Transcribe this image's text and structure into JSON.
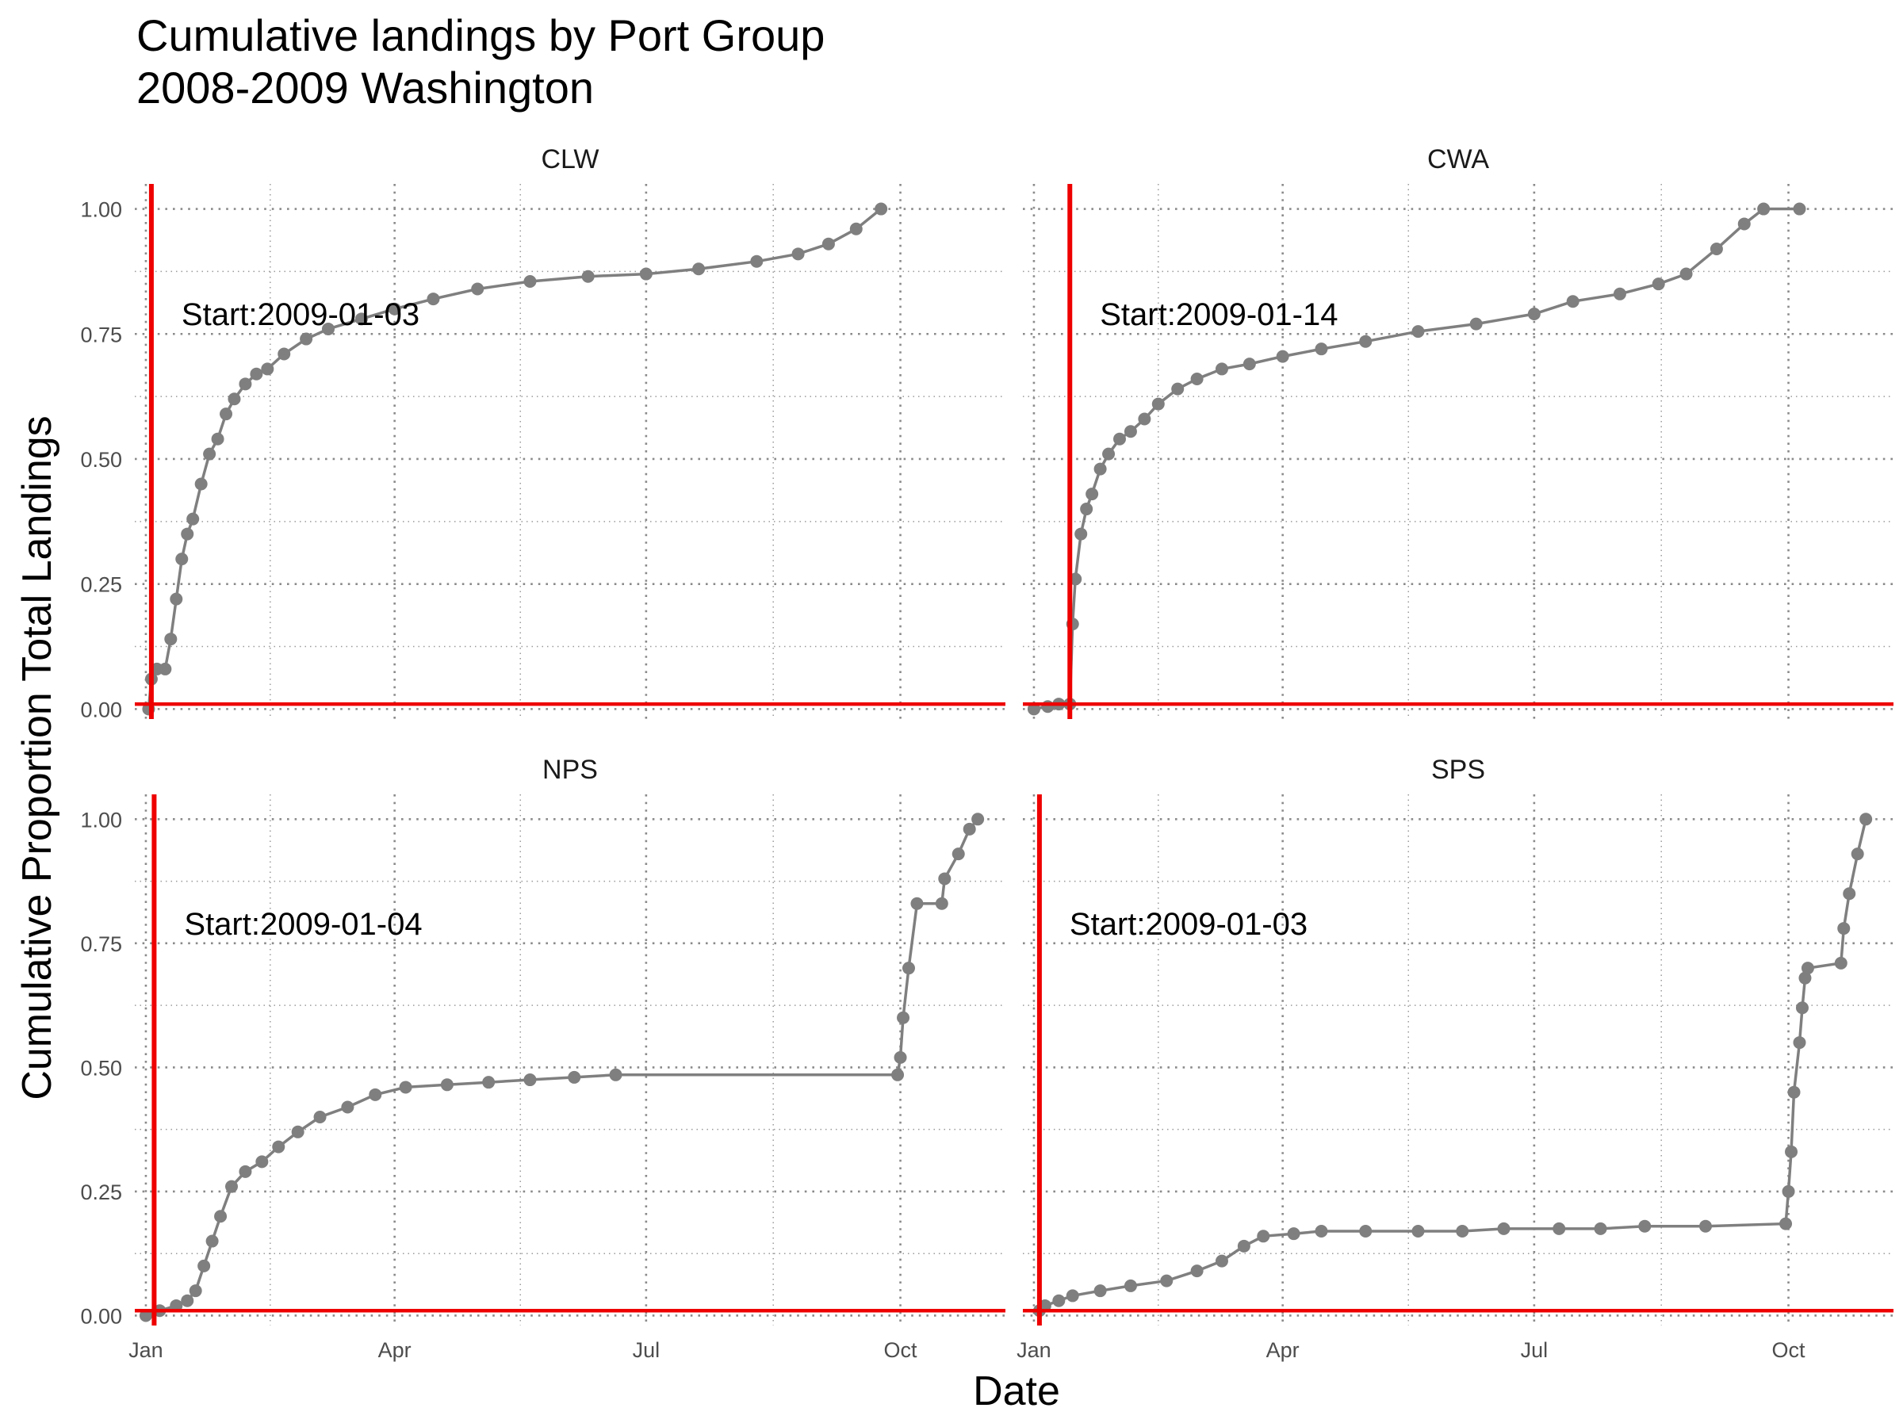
{
  "chart_data": {
    "type": "line",
    "title": "Cumulative landings by Port Group",
    "subtitle": "2008-2009 Washington",
    "xlabel": "Date",
    "ylabel": "Cumulative Proportion Total Landings",
    "x_ticks": [
      "Jan",
      "Apr",
      "Jul",
      "Oct"
    ],
    "x_tick_values": [
      "2009-01-01",
      "2009-04-01",
      "2009-07-01",
      "2009-10-01"
    ],
    "xlim": [
      "2008-12-28",
      "2009-11-08"
    ],
    "y_ticks": [
      "0.00",
      "0.25",
      "0.50",
      "0.75",
      "1.00"
    ],
    "ylim": [
      -0.02,
      1.05
    ],
    "grid": "dotted",
    "colors": {
      "series": "#7f7f7f",
      "reference": "#ee0000"
    },
    "hline": 0.01,
    "panels": [
      {
        "name": "CLW",
        "start_label": "Start:2009-01-03",
        "vline": "2009-01-03",
        "x": [
          "2009-01-02",
          "2009-01-03",
          "2009-01-05",
          "2009-01-08",
          "2009-01-10",
          "2009-01-12",
          "2009-01-14",
          "2009-01-16",
          "2009-01-18",
          "2009-01-21",
          "2009-01-24",
          "2009-01-27",
          "2009-01-30",
          "2009-02-02",
          "2009-02-06",
          "2009-02-10",
          "2009-02-14",
          "2009-02-20",
          "2009-02-28",
          "2009-03-08",
          "2009-03-20",
          "2009-04-01",
          "2009-04-15",
          "2009-05-01",
          "2009-05-20",
          "2009-06-10",
          "2009-07-01",
          "2009-07-20",
          "2009-08-10",
          "2009-08-25",
          "2009-09-05",
          "2009-09-15",
          "2009-09-24"
        ],
        "y": [
          0.0,
          0.06,
          0.08,
          0.08,
          0.14,
          0.22,
          0.3,
          0.35,
          0.38,
          0.45,
          0.51,
          0.54,
          0.59,
          0.62,
          0.65,
          0.67,
          0.68,
          0.71,
          0.74,
          0.76,
          0.78,
          0.8,
          0.82,
          0.84,
          0.855,
          0.865,
          0.87,
          0.88,
          0.895,
          0.91,
          0.93,
          0.96,
          1.0
        ]
      },
      {
        "name": "CWA",
        "start_label": "Start:2009-01-14",
        "vline": "2009-01-14",
        "x": [
          "2009-01-01",
          "2009-01-06",
          "2009-01-10",
          "2009-01-14",
          "2009-01-15",
          "2009-01-16",
          "2009-01-18",
          "2009-01-20",
          "2009-01-22",
          "2009-01-25",
          "2009-01-28",
          "2009-02-01",
          "2009-02-05",
          "2009-02-10",
          "2009-02-15",
          "2009-02-22",
          "2009-03-01",
          "2009-03-10",
          "2009-03-20",
          "2009-04-01",
          "2009-04-15",
          "2009-05-01",
          "2009-05-20",
          "2009-06-10",
          "2009-07-01",
          "2009-07-15",
          "2009-08-01",
          "2009-08-15",
          "2009-08-25",
          "2009-09-05",
          "2009-09-15",
          "2009-09-22",
          "2009-10-05"
        ],
        "y": [
          0.0,
          0.005,
          0.01,
          0.01,
          0.17,
          0.26,
          0.35,
          0.4,
          0.43,
          0.48,
          0.51,
          0.54,
          0.555,
          0.58,
          0.61,
          0.64,
          0.66,
          0.68,
          0.69,
          0.705,
          0.72,
          0.735,
          0.755,
          0.77,
          0.79,
          0.815,
          0.83,
          0.85,
          0.87,
          0.92,
          0.97,
          1.0,
          1.0
        ]
      },
      {
        "name": "NPS",
        "start_label": "Start:2009-01-04",
        "vline": "2009-01-04",
        "x": [
          "2009-01-01",
          "2009-01-06",
          "2009-01-12",
          "2009-01-16",
          "2009-01-19",
          "2009-01-22",
          "2009-01-25",
          "2009-01-28",
          "2009-02-01",
          "2009-02-06",
          "2009-02-12",
          "2009-02-18",
          "2009-02-25",
          "2009-03-05",
          "2009-03-15",
          "2009-03-25",
          "2009-04-05",
          "2009-04-20",
          "2009-05-05",
          "2009-05-20",
          "2009-06-05",
          "2009-06-20",
          "2009-09-30",
          "2009-10-01",
          "2009-10-02",
          "2009-10-04",
          "2009-10-07",
          "2009-10-16",
          "2009-10-17",
          "2009-10-22",
          "2009-10-26",
          "2009-10-29"
        ],
        "y": [
          0.0,
          0.01,
          0.02,
          0.03,
          0.05,
          0.1,
          0.15,
          0.2,
          0.26,
          0.29,
          0.31,
          0.34,
          0.37,
          0.4,
          0.42,
          0.445,
          0.46,
          0.465,
          0.47,
          0.475,
          0.48,
          0.485,
          0.485,
          0.52,
          0.6,
          0.7,
          0.83,
          0.83,
          0.88,
          0.93,
          0.98,
          1.0
        ]
      },
      {
        "name": "SPS",
        "start_label": "Start:2009-01-03",
        "vline": "2009-01-03",
        "x": [
          "2009-01-03",
          "2009-01-05",
          "2009-01-10",
          "2009-01-15",
          "2009-01-25",
          "2009-02-05",
          "2009-02-18",
          "2009-03-01",
          "2009-03-10",
          "2009-03-18",
          "2009-03-25",
          "2009-04-05",
          "2009-04-15",
          "2009-05-01",
          "2009-05-20",
          "2009-06-05",
          "2009-06-20",
          "2009-07-10",
          "2009-07-25",
          "2009-08-10",
          "2009-09-01",
          "2009-09-30",
          "2009-10-01",
          "2009-10-02",
          "2009-10-03",
          "2009-10-05",
          "2009-10-06",
          "2009-10-07",
          "2009-10-08",
          "2009-10-20",
          "2009-10-21",
          "2009-10-23",
          "2009-10-26",
          "2009-10-29"
        ],
        "y": [
          0.01,
          0.02,
          0.03,
          0.04,
          0.05,
          0.06,
          0.07,
          0.09,
          0.11,
          0.14,
          0.16,
          0.165,
          0.17,
          0.17,
          0.17,
          0.17,
          0.175,
          0.175,
          0.175,
          0.18,
          0.18,
          0.185,
          0.25,
          0.33,
          0.45,
          0.55,
          0.62,
          0.68,
          0.7,
          0.71,
          0.78,
          0.85,
          0.93,
          1.0
        ]
      }
    ]
  }
}
